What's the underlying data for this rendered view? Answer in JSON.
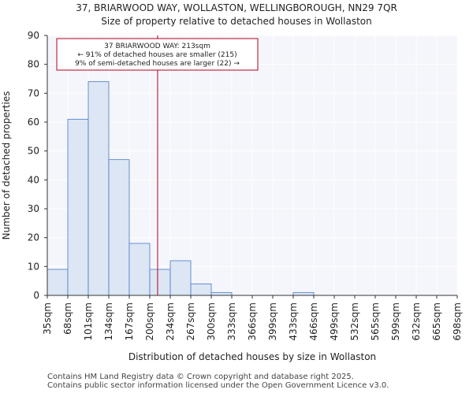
{
  "chart_data": {
    "type": "bar",
    "title_line1": "37, BRIARWOOD WAY, WOLLASTON, WELLINGBOROUGH, NN29 7QR",
    "title_line2": "Size of property relative to detached houses in Wollaston",
    "xlabel": "Distribution of detached houses by size in Wollaston",
    "ylabel": "Number of detached properties",
    "ylim": [
      0,
      90
    ],
    "yticks": [
      0,
      10,
      20,
      30,
      40,
      50,
      60,
      70,
      80,
      90
    ],
    "bin_edges": [
      35,
      68,
      101,
      134,
      167,
      200,
      234,
      267,
      300,
      333,
      366,
      399,
      433,
      466,
      499,
      532,
      565,
      599,
      632,
      665,
      698
    ],
    "tick_labels": [
      "35sqm",
      "68sqm",
      "101sqm",
      "134sqm",
      "167sqm",
      "200sqm",
      "234sqm",
      "267sqm",
      "300sqm",
      "333sqm",
      "366sqm",
      "399sqm",
      "433sqm",
      "466sqm",
      "499sqm",
      "532sqm",
      "565sqm",
      "599sqm",
      "632sqm",
      "665sqm",
      "698sqm"
    ],
    "values": [
      9,
      61,
      74,
      47,
      18,
      9,
      12,
      4,
      1,
      0,
      0,
      0,
      1,
      0,
      0,
      0,
      0,
      0,
      0,
      0
    ],
    "marker_value": 213,
    "annotation": {
      "line1": "37 BRIARWOOD WAY: 213sqm",
      "line2": "← 91% of detached houses are smaller (215)",
      "line3": "9% of semi-detached houses are larger (22) →"
    },
    "colors": {
      "bar_fill": "#dce6f5",
      "bar_stroke": "#4a78c2",
      "plot_bg": "#f4f6fc",
      "grid": "#ffffff",
      "marker": "#b5001c",
      "annotation_border": "#b5001c"
    }
  },
  "footer": {
    "line1": "Contains HM Land Registry data © Crown copyright and database right 2025.",
    "line2": "Contains public sector information licensed under the Open Government Licence v3.0."
  }
}
